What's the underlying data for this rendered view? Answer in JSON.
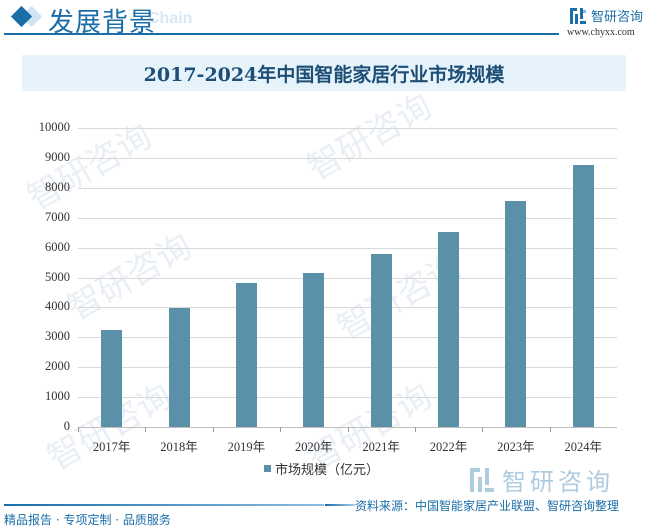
{
  "header": {
    "section_title": "发展背景",
    "section_subtitle": "Chain",
    "logo_text": "智研咨询",
    "logo_url": "www.chyxx.com"
  },
  "chart_data": {
    "type": "bar",
    "title": "2017-2024年中国智能家居行业市场规模",
    "categories": [
      "2017年",
      "2018年",
      "2019年",
      "2020年",
      "2021年",
      "2022年",
      "2023年",
      "2024年"
    ],
    "series": [
      {
        "name": "市场规模（亿元）",
        "values": [
          3250,
          3985,
          4810,
          5150,
          5800,
          6510,
          7560,
          8760
        ],
        "color": "#5b91a8"
      }
    ],
    "xlabel": "",
    "ylabel": "",
    "ylim": [
      0,
      10000
    ],
    "yticks": [
      "10000",
      "9000",
      "8000",
      "7000",
      "6000",
      "5000",
      "4000",
      "3000",
      "2000",
      "1000",
      "0"
    ],
    "grid": true,
    "legend_position": "bottom"
  },
  "watermark": {
    "text": "智研咨询"
  },
  "source": "资料来源：中国智能家居产业联盟、智研咨询整理",
  "footer": "精品报告 · 专项定制 · 品质服务",
  "colors": {
    "brand": "#1a6ea8",
    "bar": "#5b91a8",
    "title_bg": "#e7f3fb",
    "title_text": "#1d4e75"
  }
}
